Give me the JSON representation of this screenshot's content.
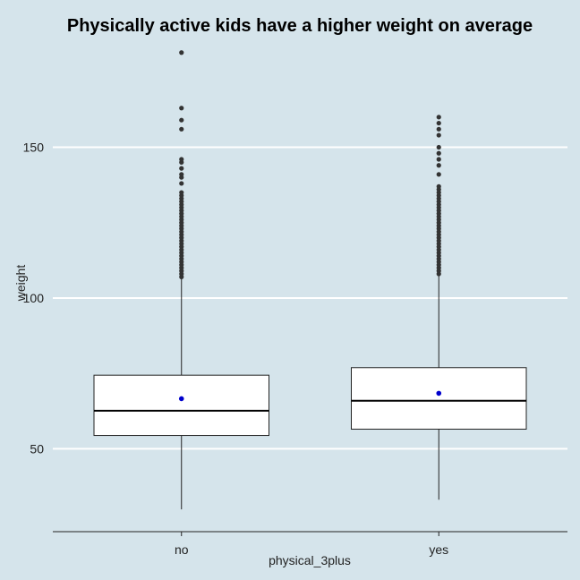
{
  "chart_data": {
    "type": "box",
    "title": "Physically active kids have a higher weight on average",
    "xlabel": "physical_3plus",
    "ylabel": "weight",
    "categories": [
      "no",
      "yes"
    ],
    "ylim": [
      22.5,
      184
    ],
    "yticks": [
      50,
      100,
      150
    ],
    "grid": "horizontal major lines only",
    "legend": "none",
    "colors": {
      "background": "#d5e4eb",
      "grid": "#ffffff",
      "box_fill": "#ffffff",
      "box_stroke": "#222222",
      "median": "#000000",
      "outlier": "#333333",
      "mean_point": "#0000cc"
    },
    "boxes": [
      {
        "category": "no",
        "whisker_low": 29.9,
        "q1": 54.4,
        "median": 62.6,
        "q3": 74.4,
        "whisker_high": 106.4,
        "mean": 66.6,
        "outliers": [
          107,
          108,
          109,
          110,
          111,
          112,
          113,
          114,
          115,
          116,
          117,
          118,
          119,
          120,
          121,
          122,
          123,
          124,
          125,
          126,
          127,
          128,
          129,
          130,
          131,
          132,
          133,
          134,
          135,
          138,
          140,
          141,
          143,
          145,
          146,
          156,
          159,
          163,
          181.4
        ]
      },
      {
        "category": "yes",
        "whisker_low": 33.1,
        "q1": 56.5,
        "median": 65.9,
        "q3": 76.9,
        "whisker_high": 107.5,
        "mean": 68.4,
        "outliers": [
          108,
          109,
          110,
          111,
          112,
          113,
          114,
          115,
          116,
          117,
          118,
          119,
          120,
          121,
          122,
          123,
          124,
          125,
          126,
          127,
          128,
          129,
          130,
          131,
          132,
          133,
          134,
          135,
          136,
          137,
          141,
          144,
          146,
          148,
          150,
          154,
          156,
          158,
          160
        ]
      }
    ]
  }
}
